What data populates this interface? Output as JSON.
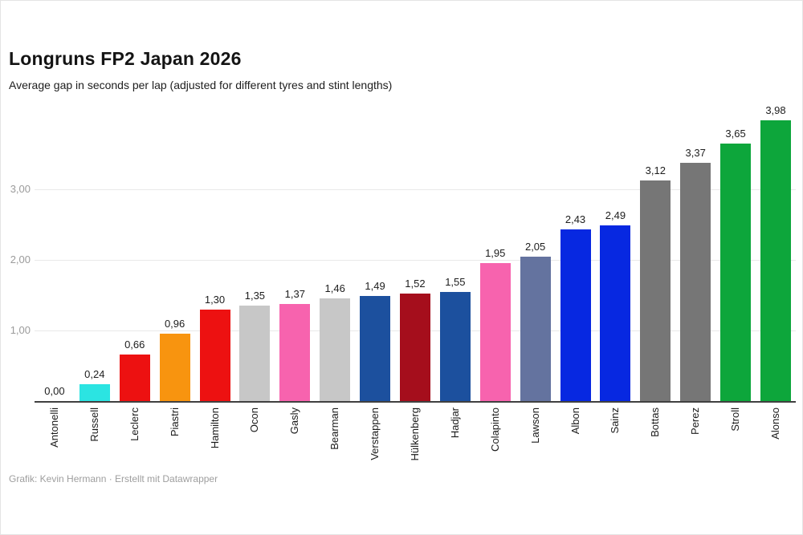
{
  "header": {
    "title": "Longruns FP2 Japan 2026",
    "subtitle": "Average gap in seconds per lap (adjusted for different tyres and stint lengths)"
  },
  "footer": {
    "credit": "Grafik: Kevin Hermann · Erstellt mit Datawrapper"
  },
  "colors": {
    "mercedes_cyan": "#2BE4E2",
    "ferrari_red": "#ED1111",
    "mclaren_orange": "#F8940F",
    "haas_gray": "#C7C7C7",
    "alpine_pink": "#F763AE",
    "redbull_navy": "#1C509E",
    "audi_dark_red": "#A50E1C",
    "racing_bulls_slate": "#64739F",
    "williams_blue": "#0728E1",
    "cadillac_gray": "#767676",
    "aston_green": "#0DA63B",
    "gridline": "#e9e9e9",
    "axis_line": "#404040",
    "tick_text": "#9b9b9b"
  },
  "chart_data": {
    "type": "bar",
    "title": "Longruns FP2 Japan 2026",
    "subtitle": "Average gap in seconds per lap (adjusted for different tyres and stint lengths)",
    "categories": [
      "Antonelli",
      "Russell",
      "Leclerc",
      "Piastri",
      "Hamilton",
      "Ocon",
      "Gasly",
      "Bearman",
      "Verstappen",
      "Hülkenberg",
      "Hadjar",
      "Colapinto",
      "Lawson",
      "Albon",
      "Sainz",
      "Bottas",
      "Perez",
      "Stroll",
      "Alonso"
    ],
    "values": [
      0.0,
      0.24,
      0.66,
      0.96,
      1.3,
      1.35,
      1.37,
      1.46,
      1.49,
      1.52,
      1.55,
      1.95,
      2.05,
      2.43,
      2.49,
      3.12,
      3.37,
      3.65,
      3.98
    ],
    "value_labels": [
      "0,00",
      "0,24",
      "0,66",
      "0,96",
      "1,30",
      "1,35",
      "1,37",
      "1,46",
      "1,49",
      "1,52",
      "1,55",
      "1,95",
      "2,05",
      "2,43",
      "2,49",
      "3,12",
      "3,37",
      "3,65",
      "3,98"
    ],
    "bar_colors": [
      "#2BE4E2",
      "#2BE4E2",
      "#ED1111",
      "#F8940F",
      "#ED1111",
      "#C7C7C7",
      "#F763AE",
      "#C7C7C7",
      "#1C509E",
      "#A50E1C",
      "#1C509E",
      "#F763AE",
      "#64739F",
      "#0728E1",
      "#0728E1",
      "#767676",
      "#767676",
      "#0DA63B",
      "#0DA63B"
    ],
    "xlabel": "",
    "ylabel": "",
    "ylim": [
      0,
      4.2
    ],
    "yticks": [
      {
        "value": 1,
        "label": "1,00"
      },
      {
        "value": 2,
        "label": "2,00"
      },
      {
        "value": 3,
        "label": "3,00"
      }
    ],
    "grid": true,
    "legend": "none",
    "x_label_rotation": -90,
    "decimal_separator": ","
  }
}
